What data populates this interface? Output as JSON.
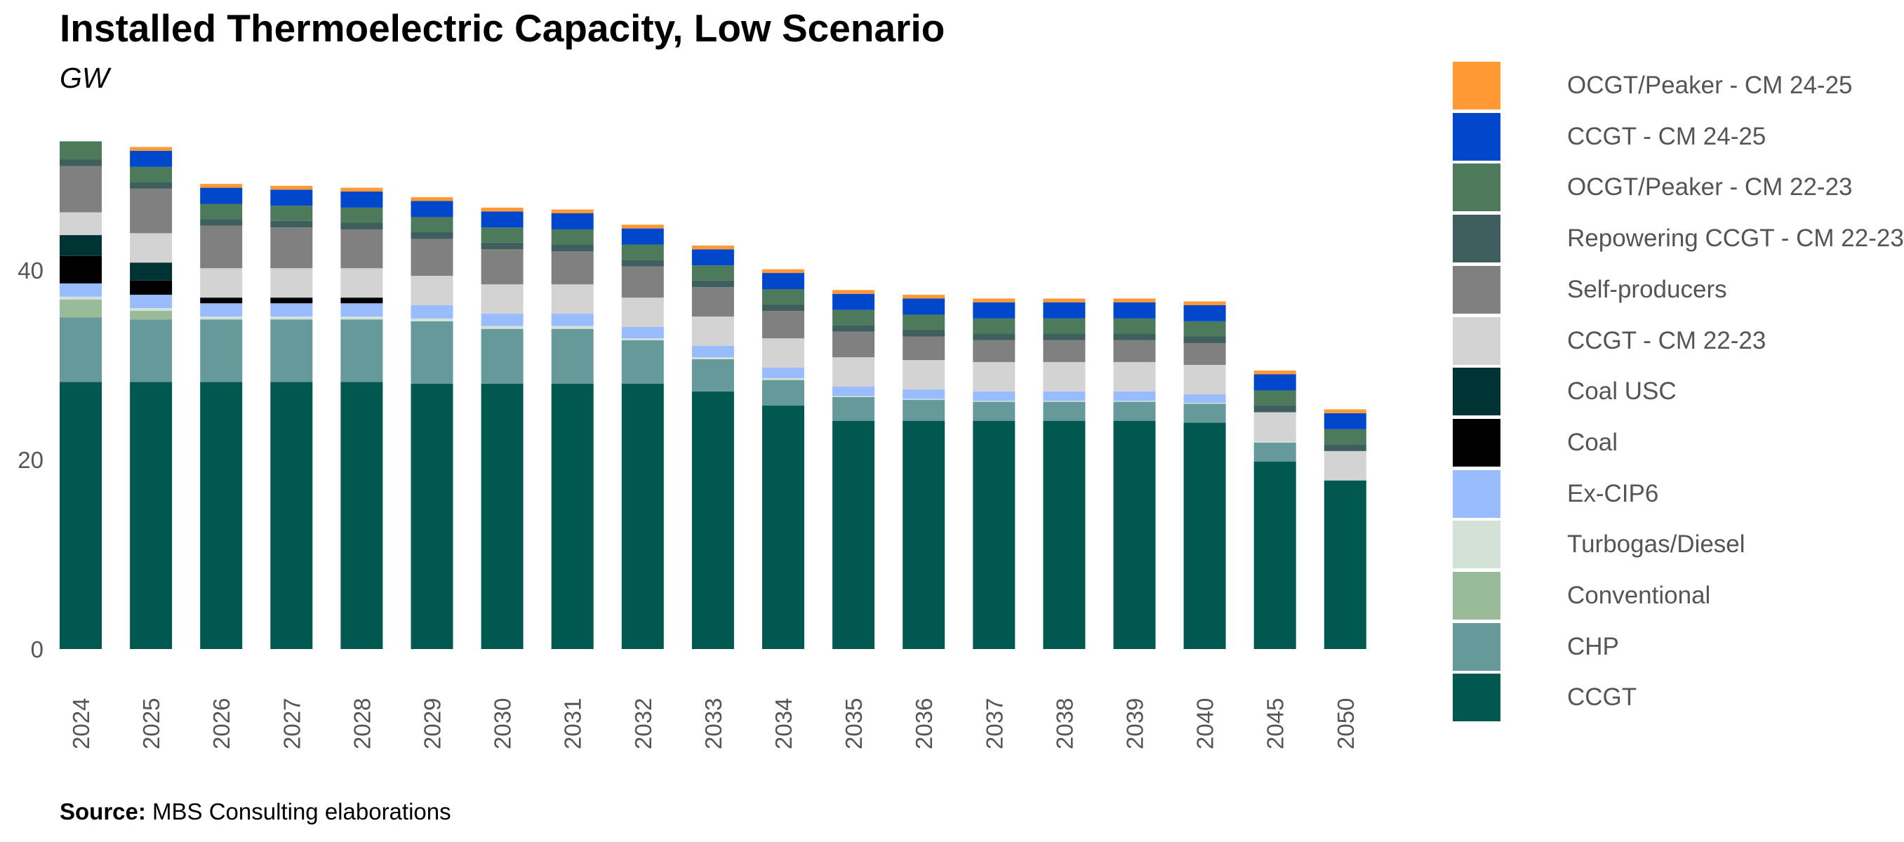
{
  "chart_data": {
    "type": "bar",
    "stacked": true,
    "title": "Installed Thermoelectric Capacity, Low Scenario",
    "subtitle": "GW",
    "source_label": "Source:",
    "source_text": "MBS Consulting elaborations",
    "categories": [
      "2024",
      "2025",
      "2026",
      "2027",
      "2028",
      "2029",
      "2030",
      "2031",
      "2032",
      "2033",
      "2034",
      "2035",
      "2036",
      "2037",
      "2038",
      "2039",
      "2040",
      "2045",
      "2050"
    ],
    "y_ticks": [
      0,
      20,
      40
    ],
    "ylim": [
      0,
      56
    ],
    "grid": false,
    "legend_position": "right",
    "series": [
      {
        "name": "CCGT",
        "color": "#005850",
        "values": [
          28.2,
          28.2,
          28.2,
          28.2,
          28.2,
          28.0,
          28.0,
          28.0,
          28.0,
          27.2,
          25.7,
          24.1,
          24.1,
          24.1,
          24.1,
          24.1,
          23.9,
          19.8,
          17.8
        ]
      },
      {
        "name": "CHP",
        "color": "#669999",
        "values": [
          6.8,
          6.6,
          6.6,
          6.6,
          6.6,
          6.6,
          5.8,
          5.8,
          4.6,
          3.4,
          2.7,
          2.5,
          2.2,
          2.0,
          2.0,
          2.0,
          2.0,
          2.0,
          0.0
        ]
      },
      {
        "name": "Conventional",
        "color": "#99BB99",
        "values": [
          1.9,
          0.9,
          0.0,
          0.0,
          0.0,
          0.0,
          0.0,
          0.0,
          0.0,
          0.0,
          0.0,
          0.0,
          0.0,
          0.0,
          0.0,
          0.0,
          0.0,
          0.0,
          0.0
        ]
      },
      {
        "name": "Turbogas/Diesel",
        "color": "#D2E2D7",
        "values": [
          0.3,
          0.3,
          0.3,
          0.3,
          0.3,
          0.3,
          0.3,
          0.3,
          0.2,
          0.2,
          0.2,
          0.1,
          0.1,
          0.1,
          0.1,
          0.1,
          0.1,
          0.1,
          0.0
        ]
      },
      {
        "name": "Ex-CIP6",
        "color": "#99BBFF",
        "values": [
          1.4,
          1.4,
          1.4,
          1.4,
          1.4,
          1.4,
          1.3,
          1.3,
          1.2,
          1.2,
          1.1,
          1.0,
          1.0,
          1.0,
          1.0,
          1.0,
          0.9,
          0.0,
          0.0
        ]
      },
      {
        "name": "Coal",
        "color": "#000000",
        "values": [
          2.9,
          1.5,
          0.6,
          0.6,
          0.6,
          0.0,
          0.0,
          0.0,
          0.0,
          0.0,
          0.0,
          0.0,
          0.0,
          0.0,
          0.0,
          0.0,
          0.0,
          0.0,
          0.0
        ]
      },
      {
        "name": "Coal USC",
        "color": "#003333",
        "values": [
          2.2,
          1.9,
          0.0,
          0.0,
          0.0,
          0.0,
          0.0,
          0.0,
          0.0,
          0.0,
          0.0,
          0.0,
          0.0,
          0.0,
          0.0,
          0.0,
          0.0,
          0.0,
          0.0
        ]
      },
      {
        "name": "CCGT - CM 22-23",
        "color": "#D3D3D3",
        "values": [
          2.4,
          3.1,
          3.1,
          3.1,
          3.1,
          3.1,
          3.1,
          3.1,
          3.1,
          3.1,
          3.1,
          3.1,
          3.1,
          3.1,
          3.1,
          3.1,
          3.1,
          3.1,
          3.1
        ]
      },
      {
        "name": "Self-producers",
        "color": "#808080",
        "values": [
          4.9,
          4.7,
          4.5,
          4.3,
          4.1,
          3.9,
          3.7,
          3.5,
          3.3,
          3.1,
          2.9,
          2.7,
          2.5,
          2.3,
          2.3,
          2.3,
          2.3,
          0.0,
          0.0
        ]
      },
      {
        "name": "Repowering CCGT - CM 22-23",
        "color": "#3F5F5F",
        "values": [
          0.7,
          0.7,
          0.7,
          0.7,
          0.7,
          0.7,
          0.7,
          0.7,
          0.7,
          0.7,
          0.7,
          0.7,
          0.7,
          0.7,
          0.7,
          0.7,
          0.7,
          0.7,
          0.7
        ]
      },
      {
        "name": "OCGT/Peaker - CM 22-23",
        "color": "#4D7A5A",
        "values": [
          1.9,
          1.6,
          1.6,
          1.6,
          1.6,
          1.6,
          1.6,
          1.6,
          1.6,
          1.6,
          1.6,
          1.6,
          1.6,
          1.6,
          1.6,
          1.6,
          1.6,
          1.6,
          1.6
        ]
      },
      {
        "name": "CCGT - CM 24-25",
        "color": "#0047CC",
        "values": [
          0.0,
          1.7,
          1.7,
          1.7,
          1.7,
          1.7,
          1.7,
          1.7,
          1.7,
          1.7,
          1.7,
          1.7,
          1.7,
          1.7,
          1.7,
          1.7,
          1.7,
          1.7,
          1.7
        ]
      },
      {
        "name": "OCGT/Peaker - CM 24-25",
        "color": "#FF9933",
        "values": [
          0.0,
          0.4,
          0.4,
          0.4,
          0.4,
          0.4,
          0.4,
          0.4,
          0.4,
          0.4,
          0.4,
          0.4,
          0.4,
          0.4,
          0.4,
          0.4,
          0.4,
          0.4,
          0.4
        ]
      }
    ]
  }
}
